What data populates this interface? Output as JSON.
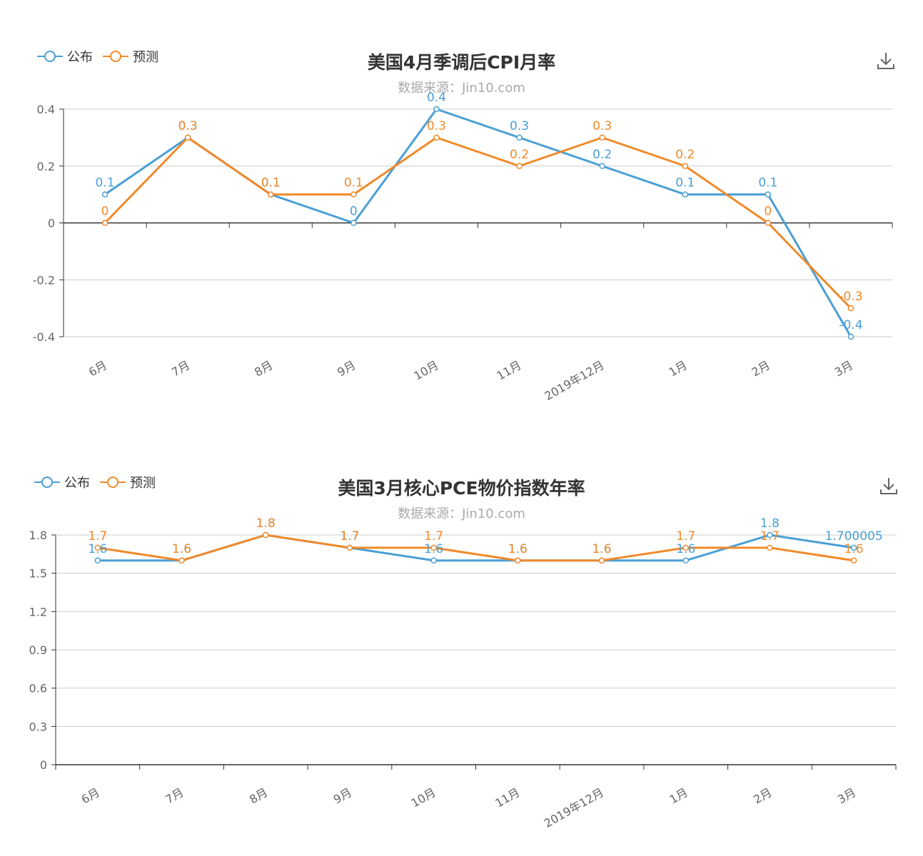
{
  "colors": {
    "published": "#4a9fd4",
    "forecast": "#f08a2a",
    "axis": "#333333",
    "grid": "#cccccc",
    "tick_text": "#666666"
  },
  "charts": [
    {
      "title": "美国4月季调后CPI月率",
      "subtitle": "数据来源：Jin10.com",
      "legend": [
        "公布",
        "预测"
      ],
      "download_icon": "download-icon"
    },
    {
      "title": "美国3月核心PCE物价指数年率",
      "subtitle": "数据来源：Jin10.com",
      "legend": [
        "公布",
        "预测"
      ],
      "download_icon": "download-icon"
    }
  ],
  "chart_data": [
    {
      "type": "line",
      "title": "美国4月季调后CPI月率",
      "subtitle": "数据来源：Jin10.com",
      "categories": [
        "6月",
        "7月",
        "8月",
        "9月",
        "10月",
        "11月",
        "2019年12月",
        "1月",
        "2月",
        "3月"
      ],
      "series": [
        {
          "name": "公布",
          "values": [
            0.1,
            0.3,
            0.1,
            0,
            0.4,
            0.3,
            0.2,
            0.1,
            0.1,
            -0.4
          ]
        },
        {
          "name": "预测",
          "values": [
            0,
            0.3,
            0.1,
            0.1,
            0.3,
            0.2,
            0.3,
            0.2,
            0,
            -0.3
          ]
        }
      ],
      "ylim": [
        -0.4,
        0.4
      ],
      "yticks": [
        "-0.4",
        "-0.2",
        "0",
        "0.2",
        "0.4"
      ],
      "grid": true,
      "legend_position": "top-left"
    },
    {
      "type": "line",
      "title": "美国3月核心PCE物价指数年率",
      "subtitle": "数据来源：Jin10.com",
      "categories": [
        "6月",
        "7月",
        "8月",
        "9月",
        "10月",
        "11月",
        "2019年12月",
        "1月",
        "2月",
        "3月"
      ],
      "series": [
        {
          "name": "公布",
          "values": [
            1.6,
            1.6,
            1.8,
            1.7,
            1.6,
            1.6,
            1.6,
            1.6,
            1.8,
            1.700005
          ]
        },
        {
          "name": "预测",
          "values": [
            1.7,
            1.6,
            1.8,
            1.7,
            1.7,
            1.6,
            1.6,
            1.7,
            1.7,
            1.6
          ]
        }
      ],
      "ylim": [
        0,
        1.8
      ],
      "yticks": [
        "0",
        "0.3",
        "0.6",
        "0.9",
        "1.2",
        "1.5",
        "1.8"
      ],
      "grid": true,
      "legend_position": "top-left"
    }
  ]
}
